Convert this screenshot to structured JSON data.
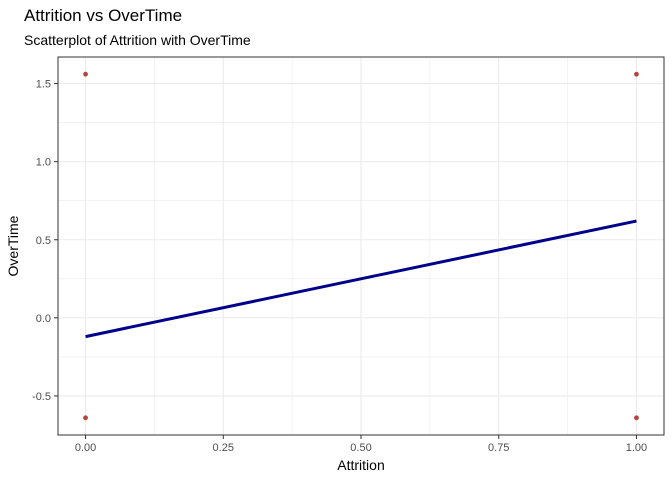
{
  "chart_data": {
    "type": "scatter",
    "title": "Attrition vs OverTime",
    "subtitle": "Scatterplot of Attrition with OverTime",
    "xlabel": "Attrition",
    "ylabel": "OverTime",
    "xlim": [
      -0.05,
      1.05
    ],
    "ylim": [
      -0.75,
      1.67
    ],
    "x_ticks": [
      0.0,
      0.25,
      0.5,
      0.75,
      1.0
    ],
    "x_tick_labels": [
      "0.00",
      "0.25",
      "0.50",
      "0.75",
      "1.00"
    ],
    "y_ticks": [
      -0.5,
      0.0,
      0.5,
      1.0,
      1.5
    ],
    "y_tick_labels": [
      "-0.5",
      "0.0",
      "0.5",
      "1.0",
      "1.5"
    ],
    "grid": true,
    "points": [
      {
        "x": 0,
        "y": 1.56
      },
      {
        "x": 1,
        "y": 1.56
      },
      {
        "x": 0,
        "y": -0.64
      },
      {
        "x": 1,
        "y": -0.64
      }
    ],
    "fit_line": {
      "x": [
        0,
        1
      ],
      "y": [
        -0.12,
        0.62
      ]
    },
    "colors": {
      "points": "#b5453d",
      "line": "#00008b",
      "grid": "#ebebeb",
      "panel_border": "#333333"
    }
  }
}
